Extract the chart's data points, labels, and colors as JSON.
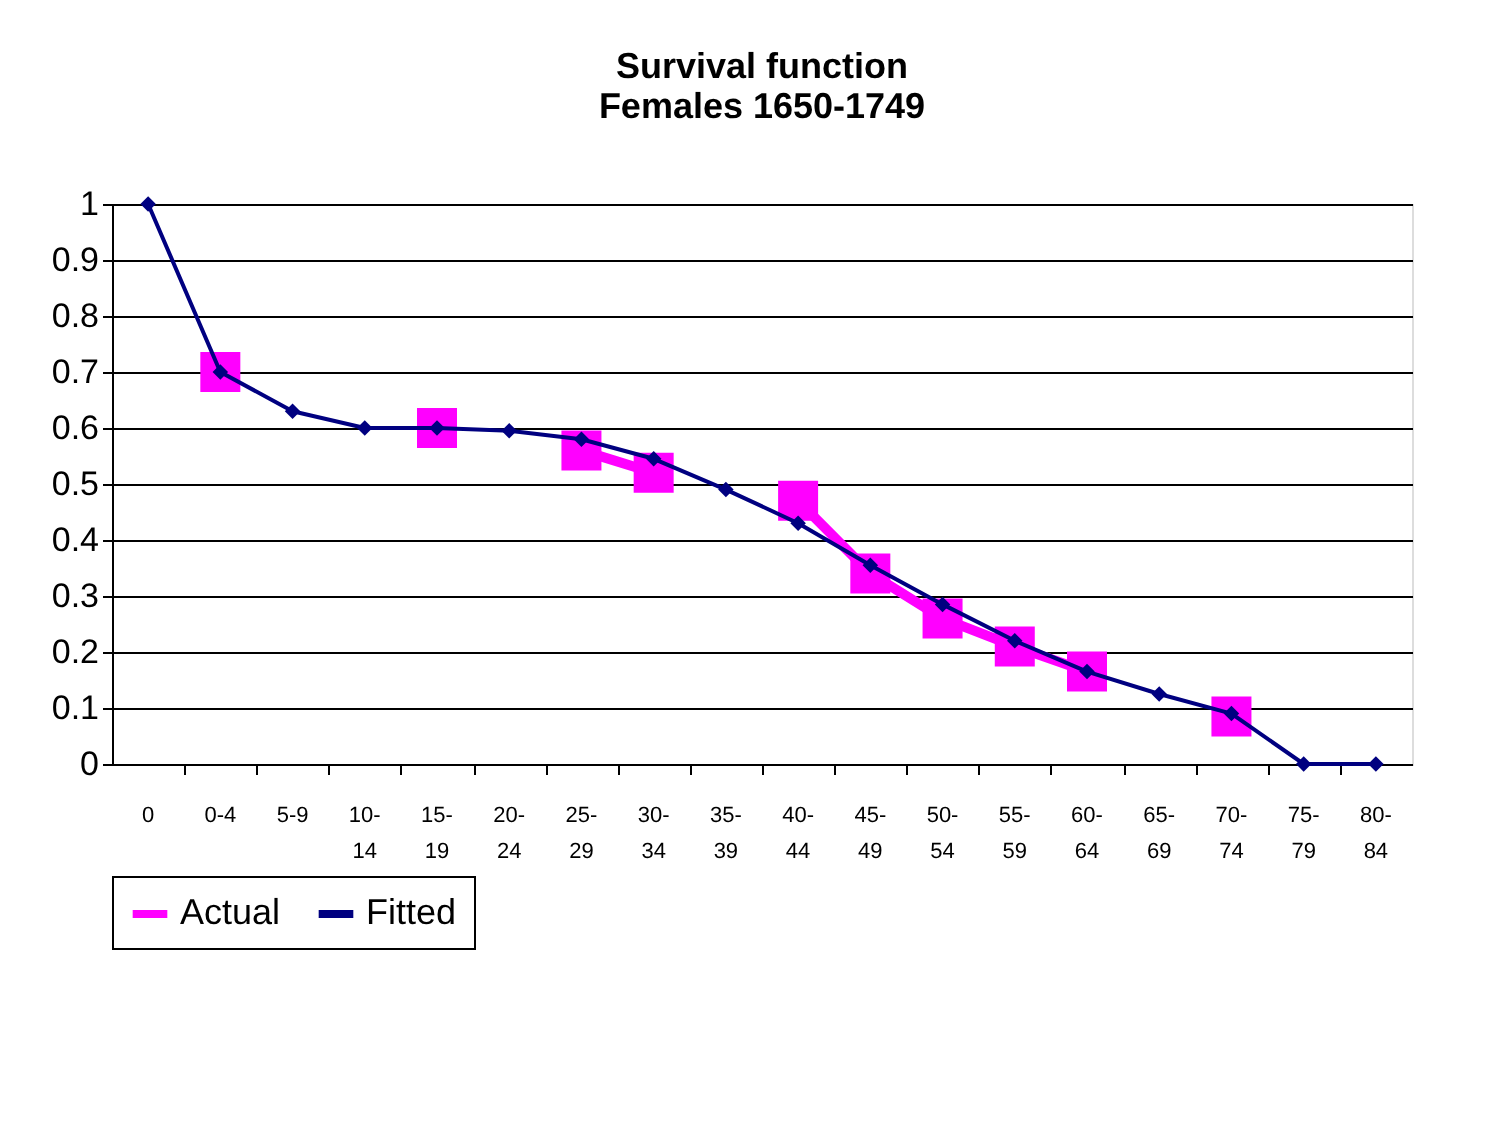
{
  "chart_data": {
    "type": "line",
    "title": [
      "Survival function",
      "Females 1650-1749"
    ],
    "categories": [
      "0",
      "0-4",
      "5-9",
      "10-14",
      "15-19",
      "20-24",
      "25-29",
      "30-34",
      "35-39",
      "40-44",
      "45-49",
      "50-54",
      "55-59",
      "60-64",
      "65-69",
      "70-74",
      "75-79",
      "80-84"
    ],
    "series": [
      {
        "name": "Actual",
        "color": "#ff00ff",
        "marker": "square",
        "values": [
          null,
          0.7,
          null,
          null,
          0.6,
          null,
          0.56,
          0.52,
          null,
          0.47,
          0.34,
          0.26,
          0.21,
          0.165,
          null,
          0.085,
          null,
          null
        ]
      },
      {
        "name": "Fitted",
        "color": "#000080",
        "marker": "diamond",
        "values": [
          1,
          0.7,
          0.63,
          0.6,
          0.6,
          0.595,
          0.58,
          0.545,
          0.49,
          0.43,
          0.355,
          0.285,
          0.22,
          0.165,
          0.125,
          0.09,
          0,
          0
        ]
      }
    ],
    "ylim": [
      0,
      1
    ],
    "yticks": [
      0,
      0.1,
      0.2,
      0.3,
      0.4,
      0.5,
      0.6,
      0.7,
      0.8,
      0.9,
      1
    ],
    "grid": "y",
    "legend": "bottom"
  }
}
